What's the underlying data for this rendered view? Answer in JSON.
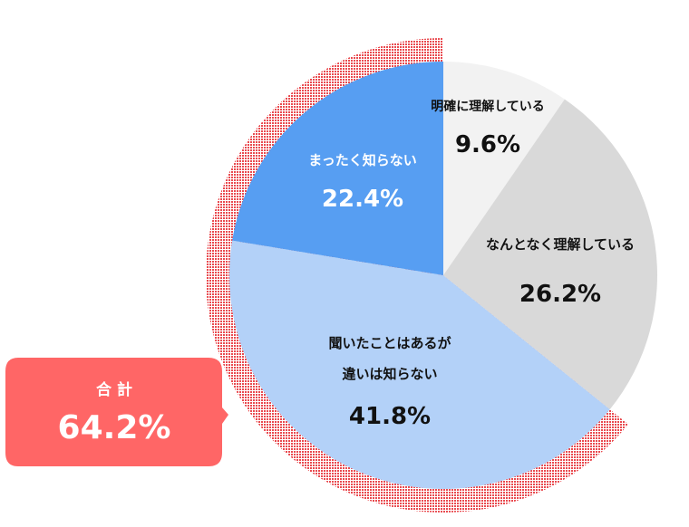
{
  "chart_data": {
    "type": "pie",
    "start_angle_deg": 0,
    "direction": "clockwise",
    "slices": [
      {
        "label": "明確に理解している",
        "value": 9.6,
        "value_label": "9.6%",
        "color": "#f2f2f2",
        "text_color": "#111111"
      },
      {
        "label": "なんとなく理解している",
        "value": 26.2,
        "value_label": "26.2%",
        "color": "#d9d9d9",
        "text_color": "#111111"
      },
      {
        "label": "聞いたことはあるが違いは知らない",
        "label_lines": [
          "聞いたことはあるが",
          "違いは知らない"
        ],
        "value": 41.8,
        "value_label": "41.8%",
        "color": "#b3d1f8",
        "text_color": "#111111"
      },
      {
        "label": "まったく知らない",
        "value": 22.4,
        "value_label": "22.4%",
        "color": "#579ef2",
        "text_color": "#ffffff"
      }
    ],
    "highlight": {
      "applies_to": [
        "聞いたことはあるが違いは知らない",
        "まったく知らない"
      ],
      "color": "#e94a4f",
      "title": "合 計",
      "value_label": "64.2%",
      "box_color": "#ff6666",
      "text_color": "#ffffff"
    }
  }
}
